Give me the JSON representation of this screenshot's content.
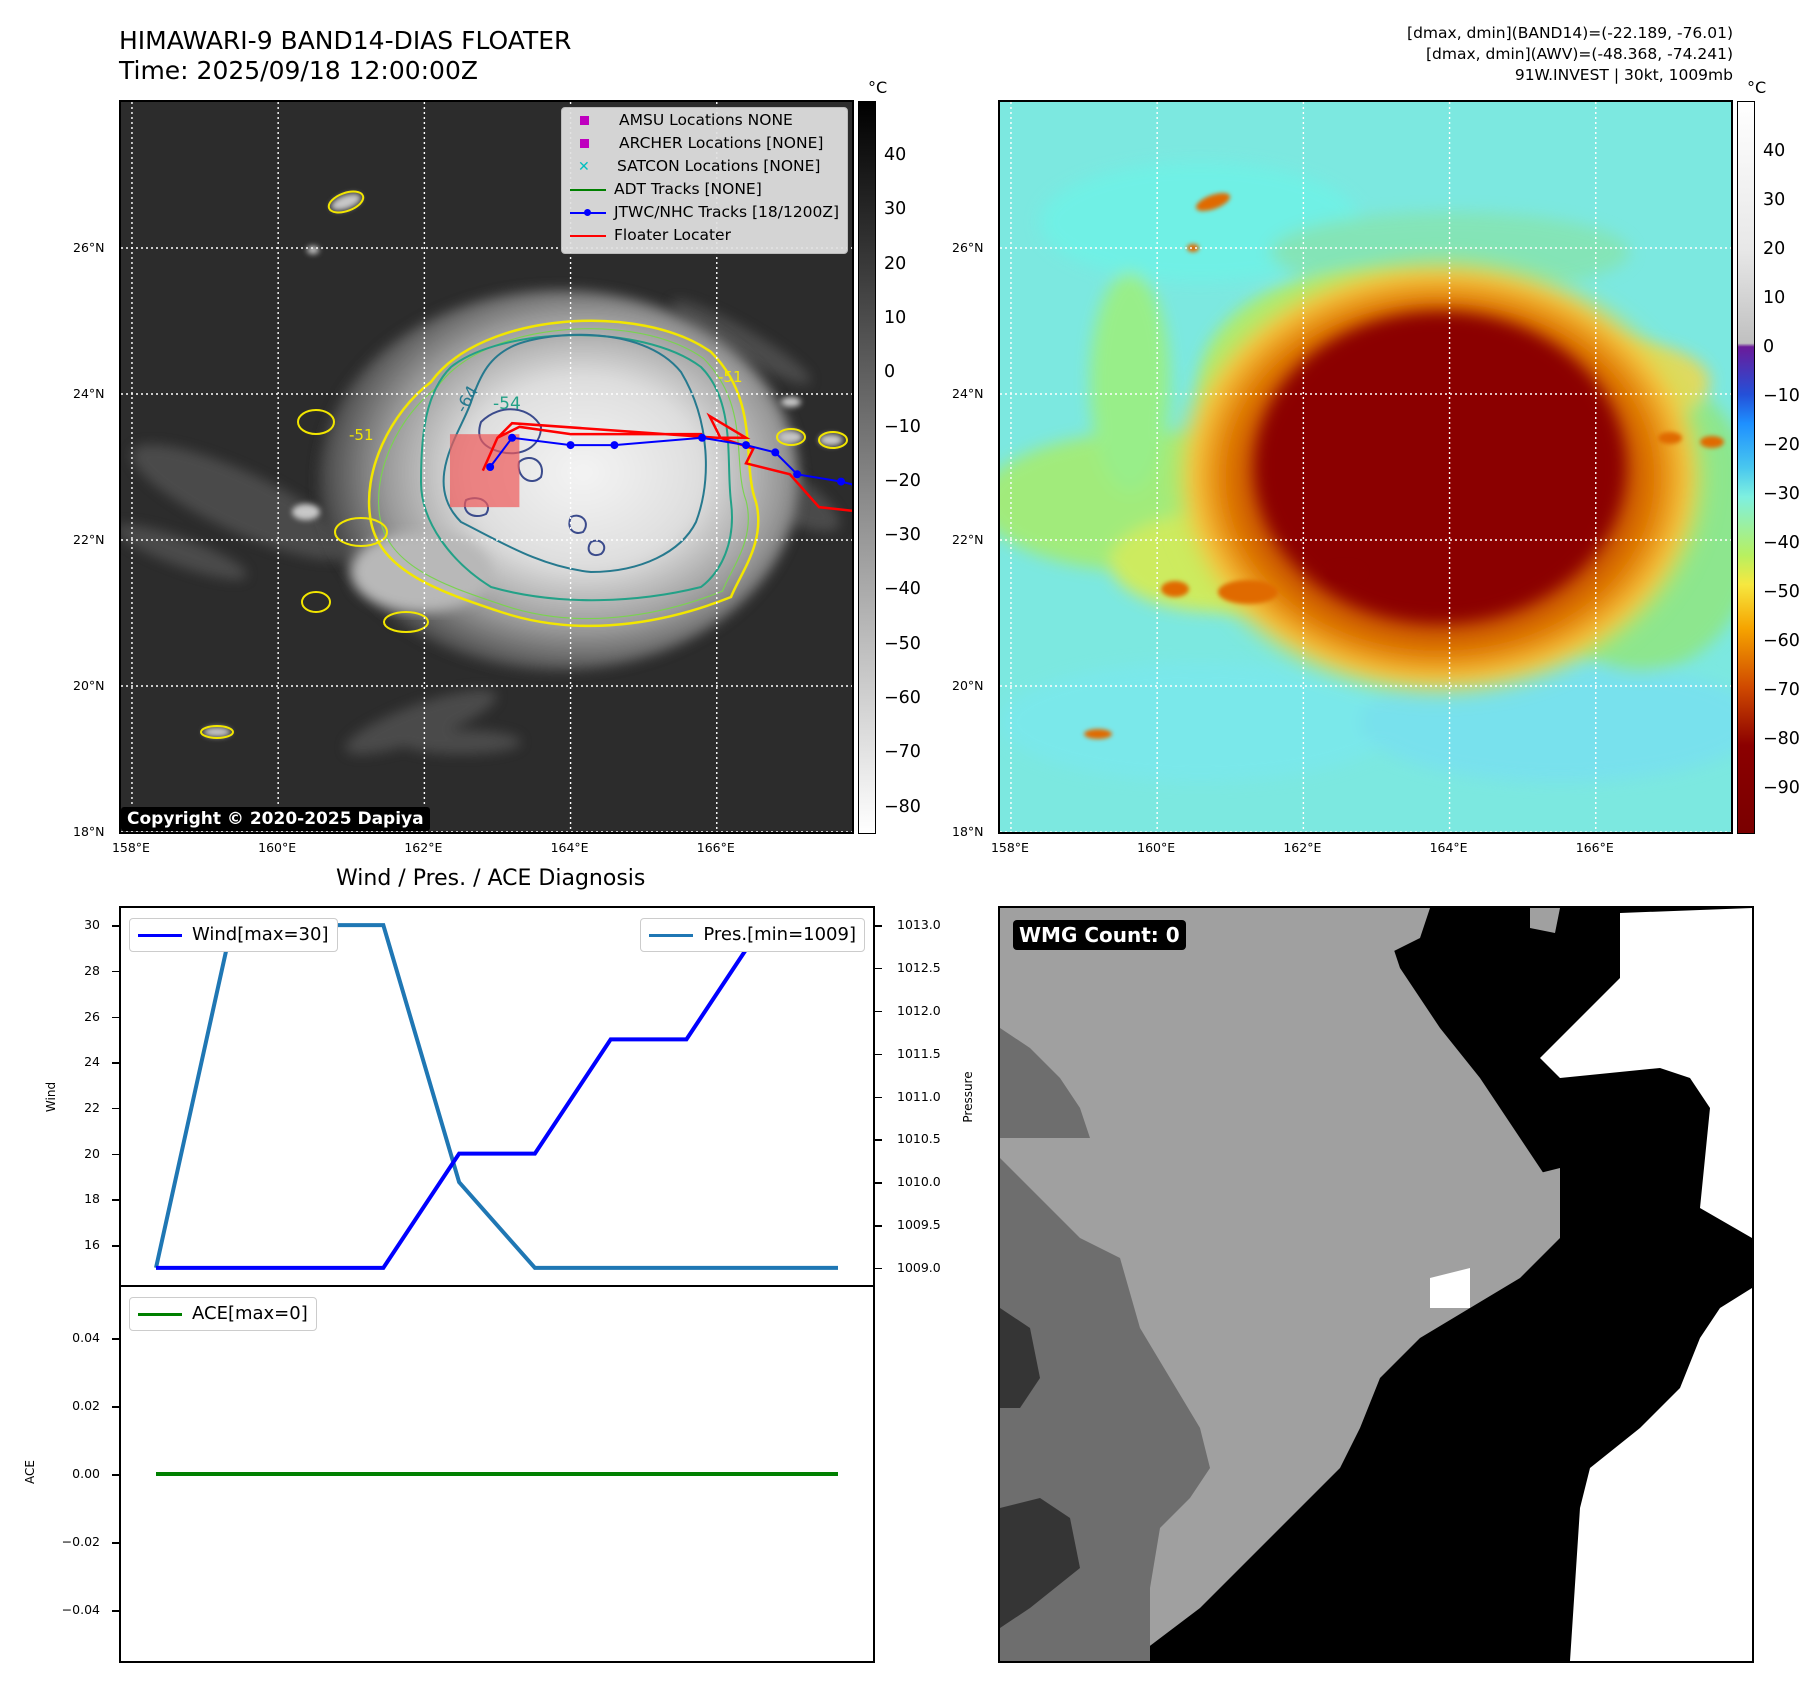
{
  "header": {
    "title": "HIMAWARI-9 BAND14-DIAS FLOATER",
    "time": "Time: 2025/09/18 12:00:00Z",
    "info": [
      "[dmax, dmin](BAND14)=(-22.189, -76.01)",
      "[dmax, dmin](AWV)=(-48.368, -74.241)",
      "91W.INVEST | 30kt, 1009mb"
    ]
  },
  "map": {
    "lat_labels": [
      "26°N",
      "24°N",
      "22°N",
      "20°N",
      "18°N"
    ],
    "lon_labels": [
      "158°E",
      "160°E",
      "162°E",
      "164°E",
      "166°E"
    ],
    "lat_values": [
      26,
      24,
      22,
      20,
      18
    ],
    "lon_values": [
      158,
      160,
      162,
      164,
      166
    ],
    "lat_range": [
      18,
      28
    ],
    "lon_range": [
      157.85,
      167.85
    ],
    "copyright": "Copyright © 2020-2025 Dapiya",
    "contour_labels": [
      "-54",
      "-64",
      "-51",
      "-51"
    ],
    "legend": [
      {
        "marker": "square",
        "color": "#bf00bf",
        "label": "AMSU Locations NONE"
      },
      {
        "marker": "square",
        "color": "#bf00bf",
        "label": "ARCHER Locations [NONE]"
      },
      {
        "marker": "x",
        "color": "#00bfbf",
        "label": "SATCON Locations [NONE]"
      },
      {
        "marker": "line",
        "color": "#008000",
        "label": "ADT Tracks [NONE]"
      },
      {
        "marker": "line-dot",
        "color": "#0000ff",
        "label": "JTWC/NHC Tracks [18/1200Z]"
      },
      {
        "marker": "line",
        "color": "#ff0000",
        "label": "Floater Locater"
      }
    ]
  },
  "colorbars": {
    "unit": "°C",
    "band14_ticks": [
      "40",
      "30",
      "20",
      "10",
      "0",
      "−10",
      "−20",
      "−30",
      "−40",
      "−50",
      "−60",
      "−70",
      "−80"
    ],
    "awv_ticks": [
      "40",
      "30",
      "20",
      "10",
      "0",
      "−10",
      "−20",
      "−30",
      "−40",
      "−50",
      "−60",
      "−70",
      "−80",
      "−90"
    ]
  },
  "diagnosis": {
    "title": "Wind / Pres. / ACE Diagnosis",
    "wind_label": "Wind",
    "pressure_label": "Pressure",
    "ace_label": "ACE",
    "wind_legend": "Wind[max=30]",
    "pres_legend": "Pres.[min=1009]",
    "ace_legend": "ACE[max=0]",
    "wind_ticks": [
      "30",
      "28",
      "26",
      "24",
      "22",
      "20",
      "18",
      "16"
    ],
    "pres_ticks": [
      "1013.0",
      "1012.5",
      "1012.0",
      "1011.5",
      "1011.0",
      "1010.5",
      "1010.0",
      "1009.5",
      "1009.0"
    ],
    "ace_ticks": [
      "0.04",
      "0.02",
      "0.00",
      "−0.02",
      "−0.04"
    ]
  },
  "wmg": {
    "label": "WMG Count: 0"
  },
  "chart_data": {
    "type": "line",
    "title": "Wind / Pres. / ACE Diagnosis",
    "x": [
      0,
      1,
      2,
      3,
      4,
      5,
      6,
      7,
      8,
      9
    ],
    "series": [
      {
        "name": "Wind[max=30]",
        "axis": "Wind",
        "color": "#0000ff",
        "values": [
          15,
          15,
          15,
          15,
          20,
          20,
          25,
          25,
          30,
          30
        ]
      },
      {
        "name": "Pres.[min=1009]",
        "axis": "Pressure",
        "color": "#1f77b4",
        "values": [
          1009,
          1013,
          1013,
          1013,
          1010,
          1009,
          1009,
          1009,
          1009,
          1009
        ]
      },
      {
        "name": "ACE[max=0]",
        "axis": "ACE",
        "color": "#008000",
        "values": [
          0,
          0,
          0,
          0,
          0,
          0,
          0,
          0,
          0,
          0
        ]
      }
    ],
    "wind_ylim": [
      14.25,
      30.75
    ],
    "pres_ylim": [
      1008.8,
      1013.2
    ],
    "ace_ylim": [
      -0.055,
      0.055
    ],
    "track_jtwc": [
      {
        "lon": 167.9,
        "lat": 22.75
      },
      {
        "lon": 167.7,
        "lat": 22.8
      },
      {
        "lon": 167.1,
        "lat": 22.9
      },
      {
        "lon": 166.8,
        "lat": 23.2
      },
      {
        "lon": 166.4,
        "lat": 23.3
      },
      {
        "lon": 165.8,
        "lat": 23.4
      },
      {
        "lon": 164.6,
        "lat": 23.3
      },
      {
        "lon": 164.0,
        "lat": 23.3
      },
      {
        "lon": 163.2,
        "lat": 23.4
      },
      {
        "lon": 162.9,
        "lat": 23.0
      }
    ],
    "floater_box": {
      "lon": [
        162.35,
        163.3
      ],
      "lat": [
        22.45,
        23.45
      ]
    }
  }
}
